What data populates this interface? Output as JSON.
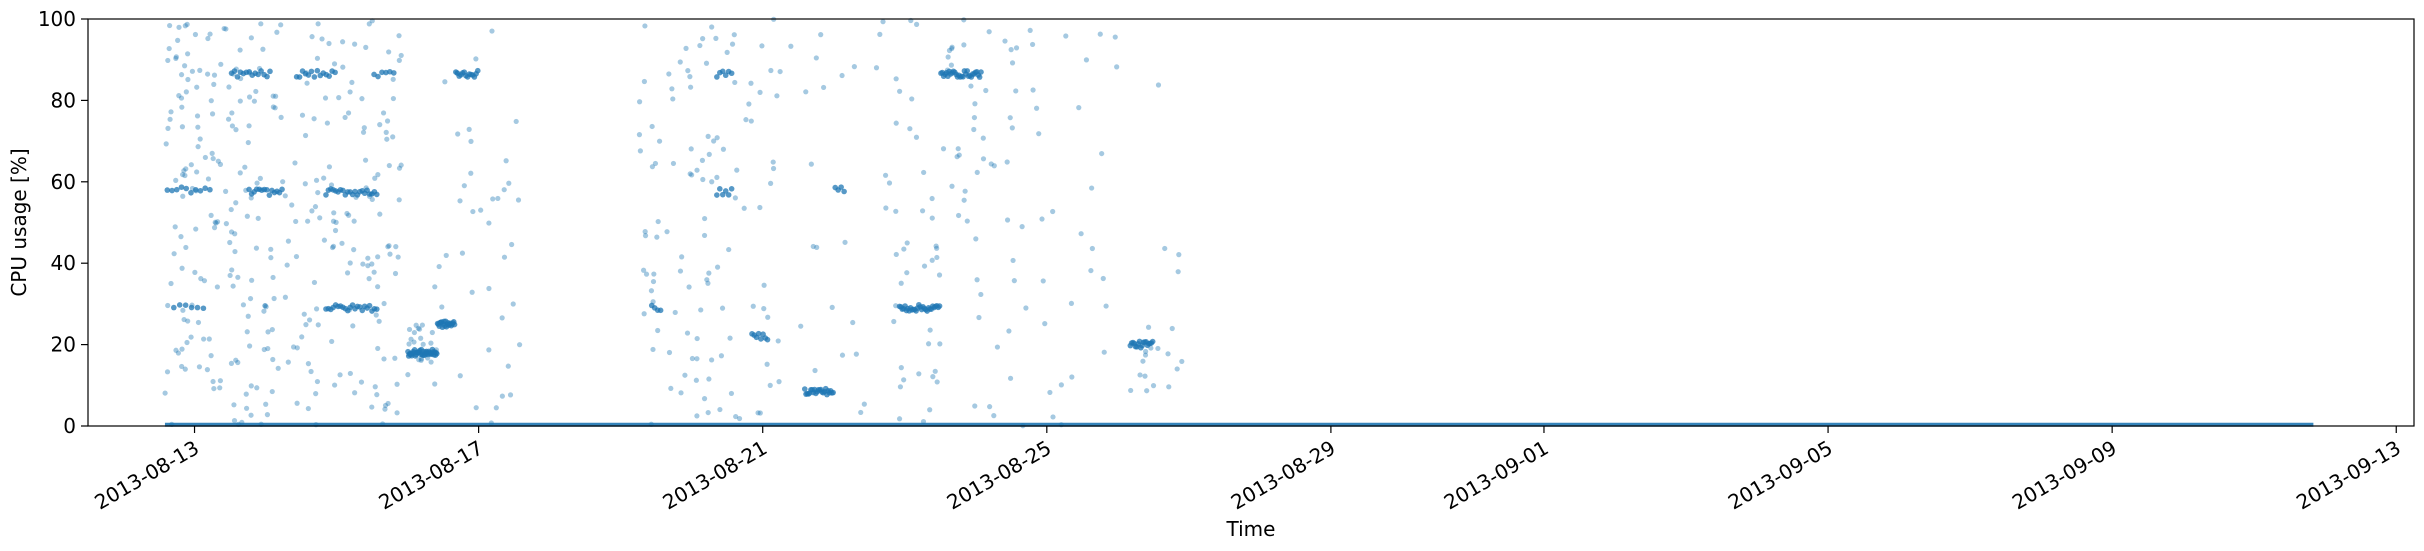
{
  "chart_data": {
    "type": "scatter",
    "title": "",
    "xlabel": "Time",
    "ylabel": "CPU usage [%]",
    "xlim": [
      "2013-08-11T12:00",
      "2013-09-13T06:00"
    ],
    "ylim": [
      0,
      100
    ],
    "x_ticks": [
      "2013-08-13",
      "2013-08-17",
      "2013-08-21",
      "2013-08-25",
      "2013-08-29",
      "2013-09-01",
      "2013-09-05",
      "2013-09-09",
      "2013-09-13"
    ],
    "y_ticks": [
      0,
      20,
      40,
      60,
      80,
      100
    ],
    "grid": false,
    "legend": "none",
    "marker_color": "#1f77b4",
    "marker_alpha": 0.4,
    "baseline_segments": [
      {
        "x_start": "2013-08-12T14:00",
        "x_end": "2013-09-11T20:00",
        "y": 0.3
      }
    ],
    "bands": [
      {
        "x_start": "2013-08-12T14:00",
        "x_end": "2013-08-13T06:00",
        "y": 58,
        "count": 10
      },
      {
        "x_start": "2013-08-12T16:00",
        "x_end": "2013-08-13T04:00",
        "y": 29,
        "count": 6
      },
      {
        "x_start": "2013-08-13T12:00",
        "x_end": "2013-08-14T02:00",
        "y": 86.5,
        "count": 14
      },
      {
        "x_start": "2013-08-13T18:00",
        "x_end": "2013-08-14T06:00",
        "y": 57.5,
        "count": 14
      },
      {
        "x_start": "2013-08-14T10:00",
        "x_end": "2013-08-15T00:00",
        "y": 86.5,
        "count": 14
      },
      {
        "x_start": "2013-08-14T20:00",
        "x_end": "2013-08-15T14:00",
        "y": 57.5,
        "count": 22
      },
      {
        "x_start": "2013-08-14T20:00",
        "x_end": "2013-08-15T14:00",
        "y": 29,
        "count": 22
      },
      {
        "x_start": "2013-08-15T12:00",
        "x_end": "2013-08-15T20:00",
        "y": 86.5,
        "count": 6
      },
      {
        "x_start": "2013-08-16T00:00",
        "x_end": "2013-08-16T10:00",
        "y": 18,
        "count": 40
      },
      {
        "x_start": "2013-08-16T10:00",
        "x_end": "2013-08-16T16:00",
        "y": 25,
        "count": 22
      },
      {
        "x_start": "2013-08-16T16:00",
        "x_end": "2013-08-17T00:00",
        "y": 86.5,
        "count": 14
      },
      {
        "x_start": "2013-08-19T10:00",
        "x_end": "2013-08-19T14:00",
        "y": 29,
        "count": 4
      },
      {
        "x_start": "2013-08-20T08:00",
        "x_end": "2013-08-20T14:00",
        "y": 86.5,
        "count": 6
      },
      {
        "x_start": "2013-08-20T08:00",
        "x_end": "2013-08-20T14:00",
        "y": 57.5,
        "count": 6
      },
      {
        "x_start": "2013-08-20T20:00",
        "x_end": "2013-08-21T02:00",
        "y": 22,
        "count": 8
      },
      {
        "x_start": "2013-08-21T14:00",
        "x_end": "2013-08-22T00:00",
        "y": 8.5,
        "count": 24
      },
      {
        "x_start": "2013-08-22T00:00",
        "x_end": "2013-08-22T04:00",
        "y": 58,
        "count": 4
      },
      {
        "x_start": "2013-08-22T22:00",
        "x_end": "2013-08-23T12:00",
        "y": 29,
        "count": 30
      },
      {
        "x_start": "2013-08-23T12:00",
        "x_end": "2013-08-24T02:00",
        "y": 86.5,
        "count": 30
      },
      {
        "x_start": "2013-08-26T04:00",
        "x_end": "2013-08-26T12:00",
        "y": 20,
        "count": 18
      }
    ],
    "scatter_regions": [
      {
        "x_start": "2013-08-12T14:00",
        "x_end": "2013-08-13T08:00",
        "y_min": 0,
        "y_max": 100,
        "count": 90
      },
      {
        "x_start": "2013-08-13T08:00",
        "x_end": "2013-08-14T10:00",
        "y_min": 0,
        "y_max": 100,
        "count": 100
      },
      {
        "x_start": "2013-08-14T10:00",
        "x_end": "2013-08-15T22:00",
        "y_min": 0,
        "y_max": 100,
        "count": 130
      },
      {
        "x_start": "2013-08-16T00:00",
        "x_end": "2013-08-16T10:00",
        "y_min": 10,
        "y_max": 25,
        "count": 25
      },
      {
        "x_start": "2013-08-16T08:00",
        "x_end": "2013-08-17T14:00",
        "y_min": 0,
        "y_max": 100,
        "count": 40
      },
      {
        "x_start": "2013-08-19T06:00",
        "x_end": "2013-08-20T00:00",
        "y_min": 0,
        "y_max": 100,
        "count": 45
      },
      {
        "x_start": "2013-08-20T00:00",
        "x_end": "2013-08-21T06:00",
        "y_min": 0,
        "y_max": 100,
        "count": 70
      },
      {
        "x_start": "2013-08-21T06:00",
        "x_end": "2013-08-22T20:00",
        "y_min": 0,
        "y_max": 100,
        "count": 25
      },
      {
        "x_start": "2013-08-22T20:00",
        "x_end": "2013-08-24T16:00",
        "y_min": 0,
        "y_max": 100,
        "count": 90
      },
      {
        "x_start": "2013-08-24T16:00",
        "x_end": "2013-08-26T00:00",
        "y_min": 0,
        "y_max": 100,
        "count": 30
      },
      {
        "x_start": "2013-08-26T04:00",
        "x_end": "2013-08-26T22:00",
        "y_min": 8,
        "y_max": 25,
        "count": 16
      },
      {
        "x_start": "2013-08-26T12:00",
        "x_end": "2013-08-26T22:00",
        "y_min": 30,
        "y_max": 96,
        "count": 4
      }
    ]
  }
}
